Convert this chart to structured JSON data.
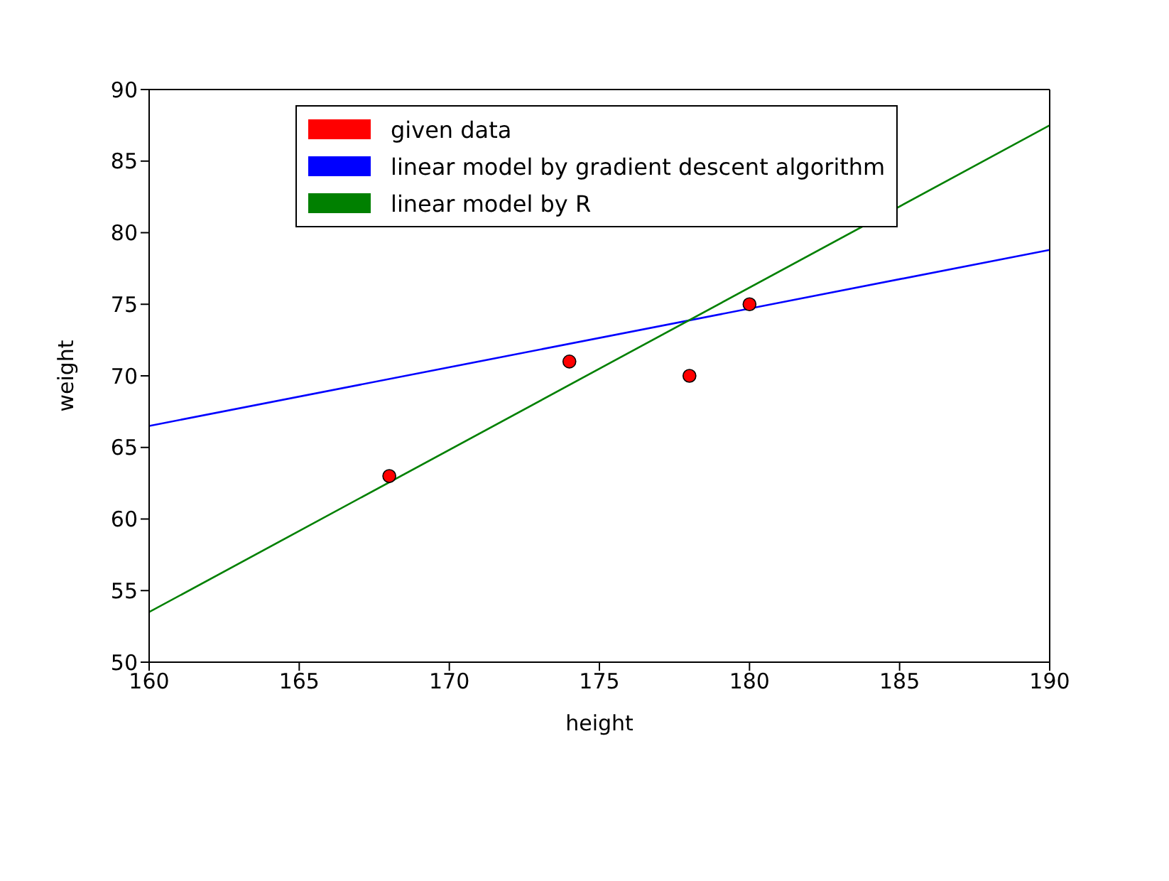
{
  "chart_data": {
    "type": "scatter",
    "xlabel": "height",
    "ylabel": "weight",
    "xlim": [
      160,
      190
    ],
    "ylim": [
      50,
      90
    ],
    "xticks": [
      160,
      165,
      170,
      175,
      180,
      185,
      190
    ],
    "yticks": [
      50,
      55,
      60,
      65,
      70,
      75,
      80,
      85,
      90
    ],
    "grid": false,
    "legend": "top",
    "series": [
      {
        "name": "given data",
        "color": "#ff0000",
        "marker": "circle",
        "x": [
          168,
          174,
          178,
          180
        ],
        "values": [
          63,
          71,
          70,
          75
        ]
      },
      {
        "name": "linear model by gradient descent algorithm",
        "type": "line",
        "color": "#0000ff",
        "x": [
          160,
          190
        ],
        "values": [
          66.5,
          78.8
        ]
      },
      {
        "name": "linear model by R",
        "type": "line",
        "color": "#008000",
        "x": [
          160,
          190
        ],
        "values": [
          53.5,
          87.5
        ]
      }
    ]
  }
}
